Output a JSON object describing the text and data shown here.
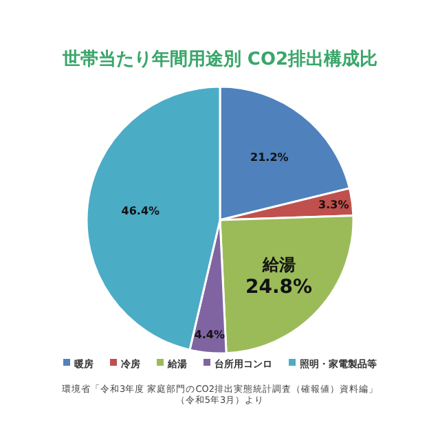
{
  "chart_data": {
    "type": "pie",
    "title": "世帯当たり年間用途別 CO2排出構成比",
    "categories": [
      "暖房",
      "冷房",
      "給湯",
      "台所用コンロ",
      "照明・家電製品等"
    ],
    "values": [
      21.2,
      3.3,
      24.8,
      4.4,
      46.4
    ],
    "colors": [
      "#4f81bd",
      "#c0504d",
      "#9bbb59",
      "#8064a2",
      "#4bacc6"
    ],
    "value_labels": [
      "21.2%",
      "3.3%",
      "給湯\n24.8%",
      "4.4%",
      "46.4%"
    ],
    "legend": "bottom",
    "annotations": [
      "環境省「令和3年度 家庭部門のCO2排出実態統計調査（確報値）資料編」",
      "（令和5年3月）より"
    ]
  }
}
